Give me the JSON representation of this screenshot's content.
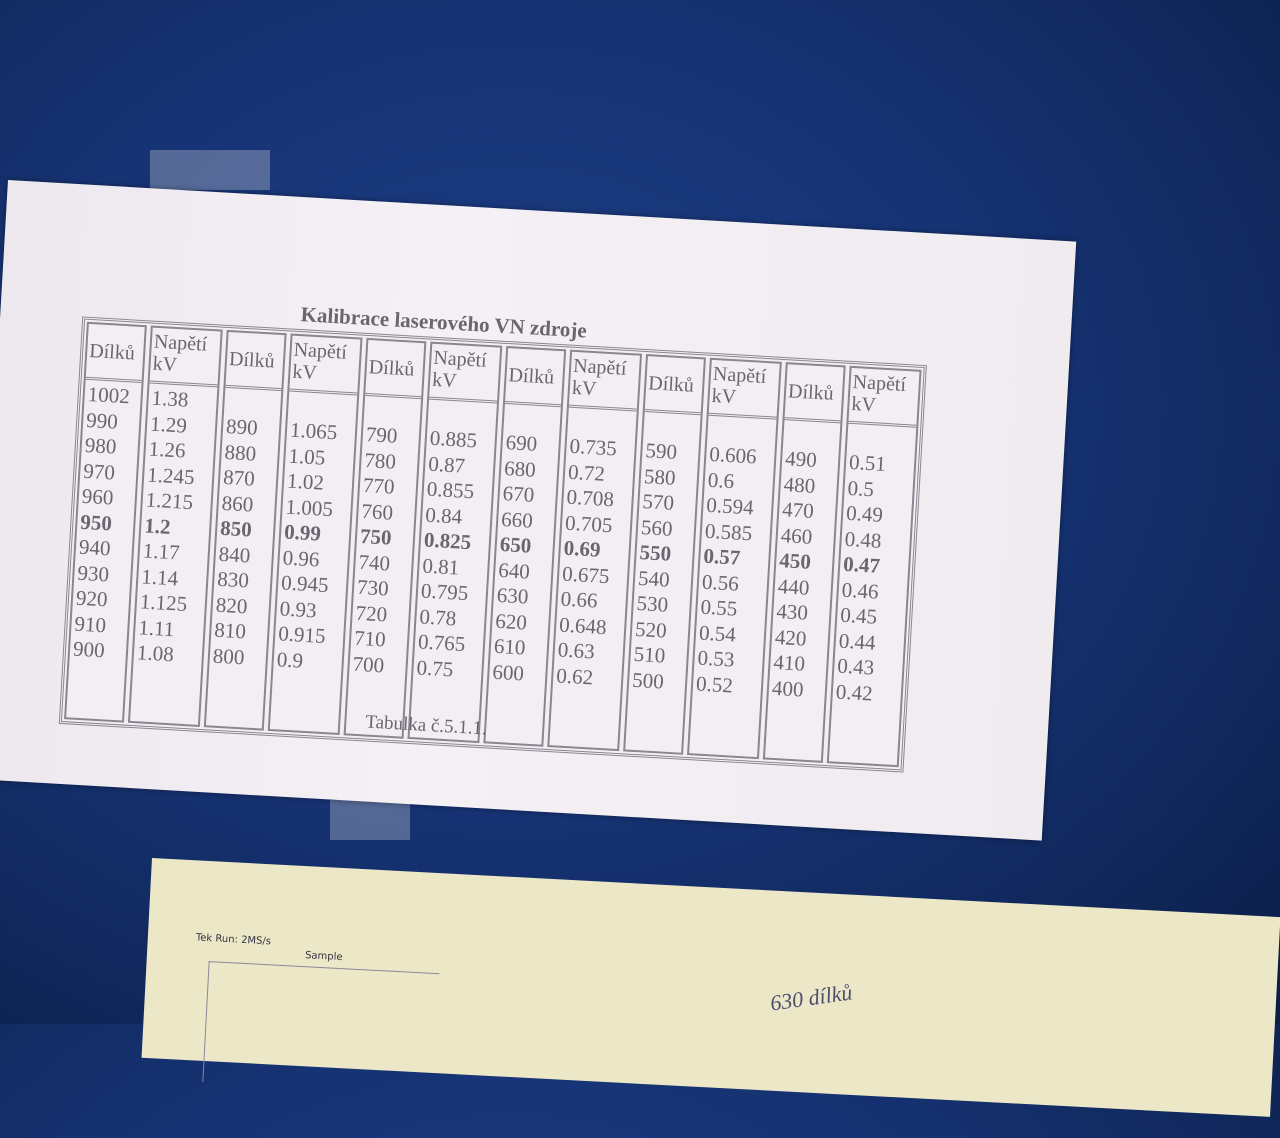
{
  "calibration_sheet": {
    "title": "Kalibrace laserového VN zdroje",
    "caption": "Tabulka č.5.1.1.",
    "header_count": "Dílků",
    "header_voltage_line1": "Napětí",
    "header_voltage_line2": "kV",
    "groups": [
      {
        "counts": [
          "1002",
          "990",
          "980",
          "970",
          "960",
          "950",
          "940",
          "930",
          "920",
          "910",
          "900"
        ],
        "voltages": [
          "1.38",
          "1.29",
          "1.26",
          "1.245",
          "1.215",
          "1.2",
          "1.17",
          "1.14",
          "1.125",
          "1.11",
          "1.08"
        ],
        "bold_index": 5
      },
      {
        "counts": [
          "890",
          "880",
          "870",
          "860",
          "850",
          "840",
          "830",
          "820",
          "810",
          "800"
        ],
        "voltages": [
          "1.065",
          "1.05",
          "1.02",
          "1.005",
          "0.99",
          "0.96",
          "0.945",
          "0.93",
          "0.915",
          "0.9"
        ],
        "bold_index": 4
      },
      {
        "counts": [
          "790",
          "780",
          "770",
          "760",
          "750",
          "740",
          "730",
          "720",
          "710",
          "700"
        ],
        "voltages": [
          "0.885",
          "0.87",
          "0.855",
          "0.84",
          "0.825",
          "0.81",
          "0.795",
          "0.78",
          "0.765",
          "0.75"
        ],
        "bold_index": 4
      },
      {
        "counts": [
          "690",
          "680",
          "670",
          "660",
          "650",
          "640",
          "630",
          "620",
          "610",
          "600"
        ],
        "voltages": [
          "0.735",
          "0.72",
          "0.708",
          "0.705",
          "0.69",
          "0.675",
          "0.66",
          "0.648",
          "0.63",
          "0.62"
        ],
        "bold_index": 4
      },
      {
        "counts": [
          "590",
          "580",
          "570",
          "560",
          "550",
          "540",
          "530",
          "520",
          "510",
          "500"
        ],
        "voltages": [
          "0.606",
          "0.6",
          "0.594",
          "0.585",
          "0.57",
          "0.56",
          "0.55",
          "0.54",
          "0.53",
          "0.52"
        ],
        "bold_index": 4
      },
      {
        "counts": [
          "490",
          "480",
          "470",
          "460",
          "450",
          "440",
          "430",
          "420",
          "410",
          "400"
        ],
        "voltages": [
          "0.51",
          "0.5",
          "0.49",
          "0.48",
          "0.47",
          "0.46",
          "0.45",
          "0.44",
          "0.43",
          "0.42"
        ],
        "bold_index": 4
      }
    ]
  },
  "oscilloscope_printout": {
    "header": "Tek Run: 2MS/s",
    "mode": "Sample",
    "handwritten_note": "630 dílků"
  },
  "colors": {
    "background": "#163374",
    "paper": "#f2eef3",
    "ink": "#6a6670"
  }
}
